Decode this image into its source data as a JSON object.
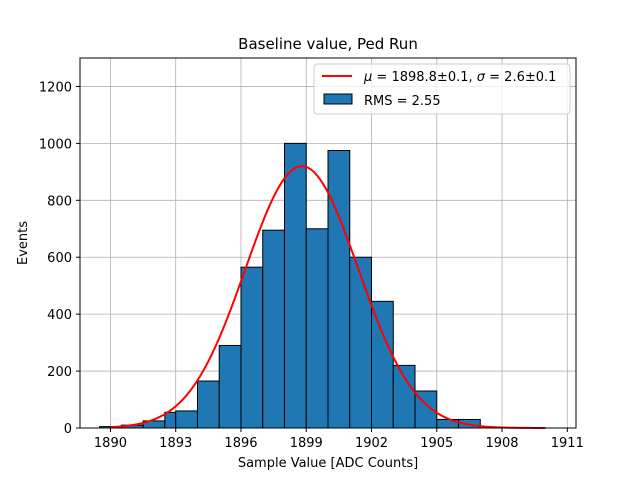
{
  "chart_data": {
    "type": "bar",
    "title": "Baseline value, Ped Run",
    "xlabel": "Sample Value [ADC Counts]",
    "ylabel": "Events",
    "xlim": [
      1888.6,
      1911.4
    ],
    "ylim": [
      0,
      1300
    ],
    "grid": true,
    "legend_position": "top-right",
    "x_ticks": [
      "1890",
      "1893",
      "1896",
      "1899",
      "1902",
      "1905",
      "1908",
      "1911"
    ],
    "y_ticks": [
      "0",
      "200",
      "400",
      "600",
      "800",
      "1000",
      "1200"
    ],
    "histogram": {
      "name": "RMS = 2.55",
      "color": "#1f77b4",
      "edgecolor": "#000000",
      "bin_edges": [
        1889.5,
        1890.5,
        1891.5,
        1892.5,
        1893.0,
        1894.0,
        1895.0,
        1896.0,
        1897.0,
        1898.0,
        1899.0,
        1900.0,
        1901.0,
        1902.0,
        1903.0,
        1904.0,
        1905.0,
        1906.0,
        1907.0
      ],
      "counts": [
        5,
        10,
        25,
        55,
        60,
        165,
        290,
        565,
        695,
        1000,
        700,
        975,
        600,
        445,
        220,
        130,
        30,
        30
      ]
    },
    "fit": {
      "name": "μ = 1898.8±0.1, σ = 2.6±0.1",
      "color": "#ff0000",
      "mu": 1898.8,
      "sigma": 2.6,
      "amplitude": 920,
      "x_range": [
        1890,
        1910
      ]
    }
  },
  "legend": {
    "fit_label_mu": "μ",
    "fit_label_mid": " = 1898.8±0.1, ",
    "fit_label_sigma": "σ",
    "fit_label_end": " = 2.6±0.1",
    "hist_label": "RMS = 2.55"
  }
}
